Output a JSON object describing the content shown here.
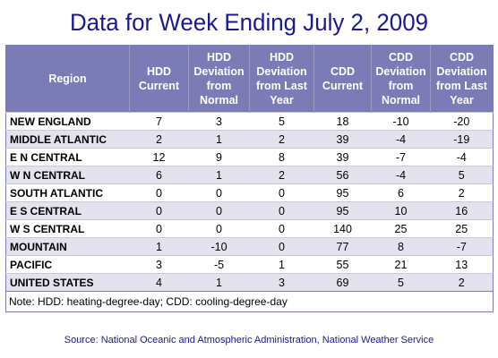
{
  "title": "Data for Week Ending July 2, 2009",
  "source": "Source:  National Oceanic and Atmospheric Administration, National Weather Service",
  "colors": {
    "header_bg": "#7b7bb5",
    "title": "#1a1a8c",
    "stripe": "#e3e3f0"
  },
  "chart_data": {
    "type": "table",
    "title": "Data for Week Ending July 2, 2009",
    "columns": [
      "Region",
      "HDD Current",
      "HDD Deviation from Normal",
      "HDD Deviation from Last Year",
      "CDD Current",
      "CDD Deviation from Normal",
      "CDD Deviation from Last Year"
    ],
    "rows": [
      [
        "NEW ENGLAND",
        "7",
        "3",
        "5",
        "18",
        "-10",
        "-20"
      ],
      [
        "MIDDLE ATLANTIC",
        "2",
        "1",
        "2",
        "39",
        "-4",
        "-19"
      ],
      [
        "E N CENTRAL",
        "12",
        "9",
        "8",
        "39",
        "-7",
        "-4"
      ],
      [
        "W N CENTRAL",
        "6",
        "1",
        "2",
        "56",
        "-4",
        "5"
      ],
      [
        "SOUTH ATLANTIC",
        "0",
        "0",
        "0",
        "95",
        "6",
        "2"
      ],
      [
        "E S CENTRAL",
        "0",
        "0",
        "0",
        "95",
        "10",
        "16"
      ],
      [
        "W S CENTRAL",
        "0",
        "0",
        "0",
        "140",
        "25",
        "25"
      ],
      [
        "MOUNTAIN",
        "1",
        "-10",
        "0",
        "77",
        "8",
        "-7"
      ],
      [
        "PACIFIC",
        "3",
        "-5",
        "1",
        "55",
        "21",
        "13"
      ],
      [
        "UNITED STATES",
        "4",
        "1",
        "3",
        "69",
        "5",
        "2"
      ]
    ],
    "note": "Note: HDD: heating-degree-day; CDD: cooling-degree-day"
  }
}
